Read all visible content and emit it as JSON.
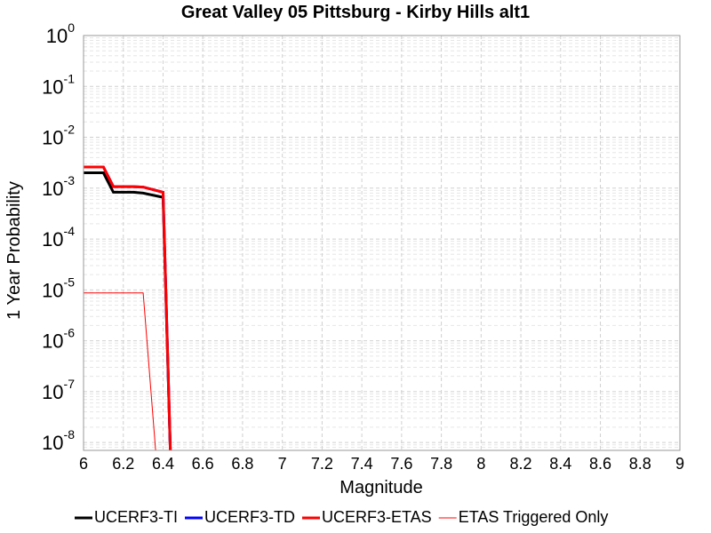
{
  "chart_data": {
    "type": "line",
    "title": "Great Valley 05 Pittsburg - Kirby Hills alt1",
    "x_label": "Magnitude",
    "y_label": "1 Year Probability",
    "x": [
      6.0,
      6.1,
      6.15,
      6.25,
      6.3,
      6.4,
      6.45
    ],
    "series": [
      {
        "name": "UCERF3-TI",
        "color": "#000000",
        "width": 3,
        "values": [
          0.002,
          0.002,
          0.00083,
          0.00083,
          0.0008,
          0.00066,
          1e-10
        ]
      },
      {
        "name": "UCERF3-TD",
        "color": "#0000ff",
        "width": 3,
        "values": [
          0.0026,
          0.0026,
          0.00107,
          0.00107,
          0.00105,
          0.00083,
          1e-10
        ]
      },
      {
        "name": "UCERF3-ETAS",
        "color": "#ff0000",
        "width": 3,
        "values": [
          0.0026,
          0.0026,
          0.00107,
          0.00107,
          0.00105,
          0.00083,
          1e-10
        ]
      },
      {
        "name": "ETAS Triggered Only",
        "color": "#ff0000",
        "width": 1,
        "values": [
          8.7e-06,
          8.7e-06,
          8.7e-06,
          8.7e-06,
          8.7e-06,
          1e-10,
          null
        ]
      }
    ],
    "xlim": [
      6,
      9
    ],
    "xticks": [
      6,
      6.2,
      6.4,
      6.6,
      6.8,
      7,
      7.2,
      7.4,
      7.6,
      7.8,
      8,
      8.2,
      8.4,
      8.6,
      8.8,
      9
    ],
    "ylim": [
      7e-09,
      1
    ],
    "ylog": true,
    "yticks": [
      {
        "value": 1,
        "label": "10",
        "exponent": "0"
      },
      {
        "value": 0.1,
        "label": "10",
        "exponent": "-1"
      },
      {
        "value": 0.01,
        "label": "10",
        "exponent": "-2"
      },
      {
        "value": 0.001,
        "label": "10",
        "exponent": "-3"
      },
      {
        "value": 0.0001,
        "label": "10",
        "exponent": "-4"
      },
      {
        "value": 1e-05,
        "label": "10",
        "exponent": "-5"
      },
      {
        "value": 1e-06,
        "label": "10",
        "exponent": "-6"
      },
      {
        "value": 1e-07,
        "label": "10",
        "exponent": "-7"
      },
      {
        "value": 1e-08,
        "label": "10",
        "exponent": "-8"
      }
    ],
    "grid": true,
    "legend": "bottom"
  }
}
